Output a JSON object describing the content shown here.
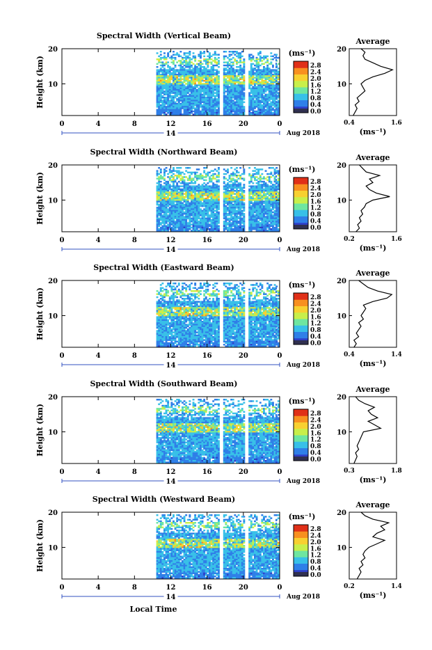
{
  "figure": {
    "shared_xlabel": "Local Time",
    "date_label": "Aug 2018",
    "day_label": "14",
    "units_label": "(ms⁻¹)",
    "avg_title": "Average",
    "avg_xlabel": "(ms⁻¹)",
    "colorbar_ticks": [
      "0.0",
      "0.4",
      "0.8",
      "1.2",
      "1.6",
      "2.0",
      "2.4",
      "2.8"
    ],
    "colorbar_colors": [
      "#303050",
      "#2e3fc8",
      "#2f7fe8",
      "#38c0e8",
      "#6ee6a0",
      "#c8ef4a",
      "#f8d030",
      "#f89020",
      "#e03018"
    ]
  },
  "chart_data": [
    {
      "type": "heatmap",
      "title": "Spectral Width (Vertical Beam)",
      "ylabel": "Height (km)",
      "xlabel": "Local Time",
      "x_ticks": [
        "0",
        "4",
        "8",
        "12",
        "16",
        "20",
        "0"
      ],
      "xlim": [
        0,
        24
      ],
      "y_ticks": [
        "10",
        "20"
      ],
      "ylim": [
        1,
        20
      ],
      "data_start_hour": 10.4,
      "gaps_hours": [
        [
          17.2,
          17.6
        ],
        [
          20.0,
          20.4
        ]
      ],
      "colorbar_range": [
        0,
        3.0
      ],
      "average_profile": {
        "x_ticks": [
          "0.4",
          "1.6"
        ],
        "xlim": [
          0.4,
          1.6
        ],
        "height_km": [
          1,
          2,
          3,
          4,
          5,
          6,
          7,
          8,
          9,
          10,
          11,
          12,
          13,
          14,
          15,
          16,
          17,
          18,
          19,
          20
        ],
        "width_ms": [
          0.5,
          0.55,
          0.6,
          0.55,
          0.65,
          0.6,
          0.7,
          0.8,
          0.75,
          0.7,
          0.8,
          1.0,
          1.3,
          1.5,
          1.2,
          1.0,
          0.8,
          0.75,
          0.8,
          0.7
        ]
      }
    },
    {
      "type": "heatmap",
      "title": "Spectral Width (Northward Beam)",
      "ylabel": "Height (km)",
      "xlabel": "Local Time",
      "x_ticks": [
        "0",
        "4",
        "8",
        "12",
        "16",
        "20",
        "0"
      ],
      "xlim": [
        0,
        24
      ],
      "y_ticks": [
        "10",
        "20"
      ],
      "ylim": [
        1,
        20
      ],
      "data_start_hour": 10.4,
      "gaps_hours": [
        [
          17.2,
          17.6
        ],
        [
          20.0,
          20.4
        ]
      ],
      "colorbar_range": [
        0,
        3.0
      ],
      "average_profile": {
        "x_ticks": [
          "0.2",
          "1.6"
        ],
        "xlim": [
          0.2,
          1.6
        ],
        "height_km": [
          1,
          2,
          3,
          4,
          5,
          6,
          7,
          8,
          9,
          10,
          11,
          12,
          13,
          14,
          15,
          16,
          17,
          18,
          19,
          20
        ],
        "width_ms": [
          0.4,
          0.5,
          0.45,
          0.55,
          0.5,
          0.6,
          0.55,
          0.65,
          0.7,
          0.9,
          1.4,
          1.0,
          0.8,
          0.7,
          0.9,
          0.8,
          1.1,
          0.7,
          0.6,
          0.5
        ]
      }
    },
    {
      "type": "heatmap",
      "title": "Spectral Width (Eastward Beam)",
      "ylabel": "Height (km)",
      "xlabel": "Local Time",
      "x_ticks": [
        "0",
        "4",
        "8",
        "12",
        "16",
        "20",
        "0"
      ],
      "xlim": [
        0,
        24
      ],
      "y_ticks": [
        "10",
        "20"
      ],
      "ylim": [
        1,
        20
      ],
      "data_start_hour": 10.4,
      "gaps_hours": [
        [
          17.2,
          17.6
        ],
        [
          20.0,
          20.4
        ]
      ],
      "colorbar_range": [
        0,
        3.0
      ],
      "average_profile": {
        "x_ticks": [
          "0.4",
          "1.4"
        ],
        "xlim": [
          0.4,
          1.4
        ],
        "height_km": [
          1,
          2,
          3,
          4,
          5,
          6,
          7,
          8,
          9,
          10,
          11,
          12,
          13,
          14,
          15,
          16,
          17,
          18,
          19,
          20
        ],
        "width_ms": [
          0.5,
          0.55,
          0.5,
          0.6,
          0.55,
          0.6,
          0.65,
          0.6,
          0.7,
          0.65,
          0.7,
          0.75,
          0.7,
          0.9,
          1.2,
          1.3,
          1.0,
          0.8,
          0.7,
          0.6
        ]
      }
    },
    {
      "type": "heatmap",
      "title": "Spectral Width (Southward Beam)",
      "ylabel": "Height (km)",
      "xlabel": "Local Time",
      "x_ticks": [
        "0",
        "4",
        "8",
        "12",
        "16",
        "20",
        "0"
      ],
      "xlim": [
        0,
        24
      ],
      "y_ticks": [
        "10",
        "20"
      ],
      "ylim": [
        1,
        20
      ],
      "data_start_hour": 10.4,
      "gaps_hours": [
        [
          17.2,
          17.6
        ],
        [
          20.0,
          20.4
        ]
      ],
      "colorbar_range": [
        0,
        3.0
      ],
      "average_profile": {
        "x_ticks": [
          "0.3",
          "1.8"
        ],
        "xlim": [
          0.3,
          1.8
        ],
        "height_km": [
          1,
          2,
          3,
          4,
          5,
          6,
          7,
          8,
          9,
          10,
          11,
          12,
          13,
          14,
          15,
          16,
          17,
          18,
          19,
          20
        ],
        "width_ms": [
          0.45,
          0.5,
          0.55,
          0.5,
          0.6,
          0.55,
          0.6,
          0.65,
          0.7,
          0.75,
          1.3,
          1.1,
          0.9,
          1.2,
          1.0,
          0.9,
          1.1,
          0.8,
          0.6,
          0.5
        ]
      }
    },
    {
      "type": "heatmap",
      "title": "Spectral Width (Westward Beam)",
      "ylabel": "Height (km)",
      "xlabel": "Local Time",
      "x_ticks": [
        "0",
        "4",
        "8",
        "12",
        "16",
        "20",
        "0"
      ],
      "xlim": [
        0,
        24
      ],
      "y_ticks": [
        "10",
        "20"
      ],
      "ylim": [
        1,
        20
      ],
      "data_start_hour": 10.4,
      "gaps_hours": [
        [
          17.2,
          17.6
        ],
        [
          20.0,
          20.4
        ]
      ],
      "colorbar_range": [
        0,
        3.0
      ],
      "average_profile": {
        "x_ticks": [
          "0.2",
          "1.4"
        ],
        "xlim": [
          0.2,
          1.4
        ],
        "height_km": [
          1,
          2,
          3,
          4,
          5,
          6,
          7,
          8,
          9,
          10,
          11,
          12,
          13,
          14,
          15,
          16,
          17,
          18,
          19,
          20
        ],
        "width_ms": [
          0.4,
          0.45,
          0.5,
          0.45,
          0.55,
          0.5,
          0.6,
          0.55,
          0.6,
          0.7,
          0.9,
          1.1,
          0.8,
          0.9,
          1.1,
          1.0,
          1.2,
          0.8,
          0.6,
          0.5
        ]
      }
    }
  ]
}
